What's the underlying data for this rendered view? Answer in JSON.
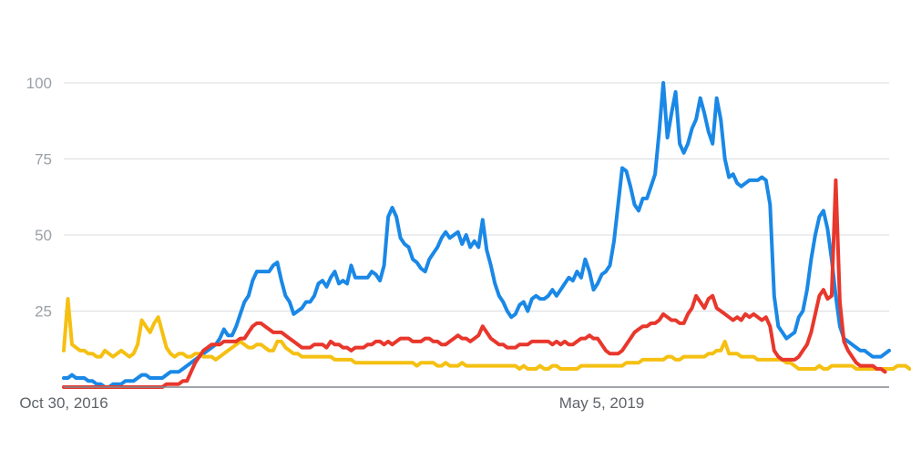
{
  "chart_data": {
    "type": "line",
    "x_start_label": "Oct 30, 2016",
    "x_end_label": "",
    "x_tick_labels": [
      {
        "label": "Oct 30, 2016",
        "index": 0
      },
      {
        "label": "May 5, 2019",
        "index": 131
      }
    ],
    "ylim": [
      0,
      100
    ],
    "yticks": [
      "25",
      "50",
      "75",
      "100"
    ],
    "grid": true,
    "colors": {
      "blue": "#1a88e6",
      "red": "#e8372c",
      "yellow": "#f5c012"
    },
    "series": [
      {
        "color": "#1a88e6",
        "values": [
          3,
          3,
          4,
          3,
          3,
          3,
          2,
          2,
          1,
          1,
          0,
          0,
          1,
          1,
          1,
          2,
          2,
          2,
          3,
          4,
          4,
          3,
          3,
          3,
          3,
          4,
          5,
          5,
          5,
          6,
          7,
          8,
          9,
          10,
          11,
          12,
          13,
          14,
          16,
          19,
          17,
          17,
          20,
          24,
          28,
          30,
          35,
          38,
          38,
          38,
          38,
          40,
          41,
          35,
          30,
          28,
          24,
          25,
          26,
          28,
          28,
          30,
          34,
          35,
          33,
          36,
          38,
          34,
          35,
          34,
          40,
          36,
          36,
          36,
          36,
          38,
          37,
          35,
          40,
          56,
          59,
          56,
          49,
          47,
          46,
          42,
          41,
          39,
          38,
          42,
          44,
          46,
          49,
          51,
          49,
          50,
          51,
          47,
          50,
          46,
          48,
          46,
          55,
          45,
          40,
          34,
          30,
          28,
          25,
          23,
          24,
          27,
          28,
          25,
          29,
          30,
          29,
          29,
          30,
          32,
          30,
          32,
          34,
          36,
          35,
          38,
          36,
          42,
          38,
          32,
          34,
          37,
          38,
          40,
          48,
          60,
          72,
          71,
          66,
          60,
          58,
          62,
          62,
          66,
          70,
          84,
          100,
          82,
          90,
          97,
          80,
          77,
          80,
          85,
          88,
          95,
          90,
          84,
          80,
          95,
          88,
          75,
          69,
          70,
          67,
          66,
          67,
          68,
          68,
          68,
          69,
          68,
          60,
          30,
          20,
          18,
          16,
          17,
          18,
          23,
          25,
          32,
          42,
          50,
          56,
          58,
          52,
          42,
          30,
          20,
          16,
          15,
          14,
          13,
          12,
          12,
          11,
          10,
          10,
          10,
          11,
          12
        ]
      },
      {
        "color": "#e8372c",
        "values": [
          0,
          0,
          0,
          0,
          0,
          0,
          0,
          0,
          0,
          0,
          0,
          0,
          0,
          0,
          0,
          0,
          0,
          0,
          0,
          0,
          0,
          0,
          0,
          0,
          0,
          1,
          1,
          1,
          1,
          2,
          2,
          5,
          8,
          10,
          12,
          13,
          14,
          14,
          14,
          15,
          15,
          15,
          15,
          16,
          16,
          18,
          20,
          21,
          21,
          20,
          19,
          18,
          18,
          18,
          17,
          16,
          15,
          14,
          13,
          13,
          13,
          14,
          14,
          14,
          13,
          15,
          14,
          14,
          13,
          13,
          12,
          13,
          13,
          13,
          14,
          14,
          15,
          15,
          14,
          15,
          14,
          15,
          16,
          16,
          16,
          15,
          15,
          15,
          16,
          16,
          15,
          15,
          14,
          14,
          15,
          16,
          17,
          16,
          16,
          15,
          16,
          17,
          20,
          18,
          16,
          15,
          14,
          14,
          13,
          13,
          13,
          14,
          14,
          14,
          15,
          15,
          15,
          15,
          15,
          14,
          15,
          14,
          15,
          14,
          14,
          15,
          16,
          16,
          17,
          16,
          16,
          14,
          12,
          11,
          11,
          11,
          12,
          14,
          16,
          18,
          19,
          20,
          20,
          21,
          21,
          22,
          24,
          23,
          22,
          22,
          21,
          21,
          24,
          26,
          30,
          28,
          26,
          29,
          30,
          26,
          25,
          24,
          23,
          22,
          23,
          22,
          24,
          23,
          24,
          23,
          22,
          23,
          20,
          12,
          10,
          9,
          9,
          9,
          9,
          10,
          12,
          14,
          18,
          24,
          30,
          32,
          29,
          30,
          68,
          28,
          15,
          12,
          10,
          8,
          7,
          7,
          7,
          7,
          6,
          6,
          5
        ]
      },
      {
        "color": "#f5c012",
        "values": [
          12,
          29,
          14,
          13,
          12,
          12,
          11,
          11,
          10,
          10,
          12,
          11,
          10,
          11,
          12,
          11,
          10,
          11,
          14,
          22,
          20,
          18,
          21,
          23,
          18,
          13,
          11,
          10,
          11,
          11,
          10,
          10,
          11,
          11,
          10,
          10,
          10,
          9,
          10,
          11,
          12,
          13,
          14,
          15,
          14,
          13,
          13,
          14,
          14,
          13,
          12,
          12,
          15,
          15,
          13,
          12,
          11,
          11,
          10,
          10,
          10,
          10,
          10,
          10,
          10,
          10,
          9,
          9,
          9,
          9,
          9,
          8,
          8,
          8,
          8,
          8,
          8,
          8,
          8,
          8,
          8,
          8,
          8,
          8,
          8,
          8,
          7,
          8,
          8,
          8,
          8,
          7,
          7,
          8,
          7,
          7,
          7,
          8,
          7,
          7,
          7,
          7,
          7,
          7,
          7,
          7,
          7,
          7,
          7,
          7,
          7,
          6,
          7,
          6,
          6,
          6,
          7,
          6,
          6,
          7,
          7,
          6,
          6,
          6,
          6,
          6,
          7,
          7,
          7,
          7,
          7,
          7,
          7,
          7,
          7,
          7,
          7,
          8,
          8,
          8,
          8,
          9,
          9,
          9,
          9,
          9,
          9,
          10,
          10,
          9,
          9,
          10,
          10,
          10,
          10,
          10,
          10,
          11,
          11,
          12,
          12,
          15,
          11,
          11,
          11,
          10,
          10,
          10,
          10,
          9,
          9,
          9,
          9,
          9,
          9,
          9,
          8,
          8,
          7,
          6,
          6,
          6,
          6,
          6,
          7,
          6,
          6,
          7,
          7,
          7,
          7,
          7,
          7,
          6,
          6,
          6,
          6,
          6,
          6,
          6,
          6,
          6,
          6,
          7,
          7,
          7,
          6
        ]
      }
    ]
  }
}
